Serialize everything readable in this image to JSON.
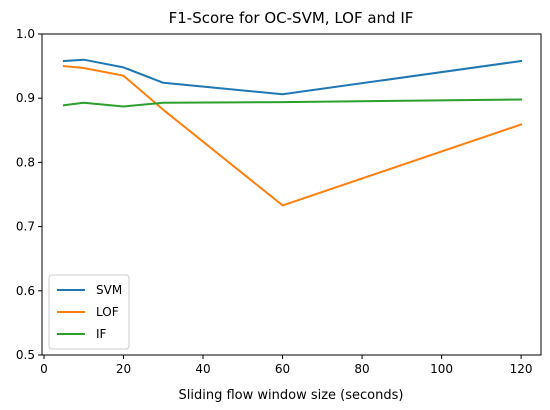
{
  "chart_data": {
    "type": "line",
    "title": "F1-Score for OC-SVM, LOF and IF",
    "xlabel": "Sliding flow window size (seconds)",
    "ylabel": "",
    "xlim": [
      -0.5,
      125
    ],
    "ylim": [
      0.5,
      1.0
    ],
    "xticks": [
      0,
      20,
      40,
      60,
      80,
      100,
      120
    ],
    "yticks": [
      0.5,
      0.6,
      0.7,
      0.8,
      0.9,
      1.0
    ],
    "xtick_labels": [
      "0",
      "20",
      "40",
      "60",
      "80",
      "100",
      "120"
    ],
    "ytick_labels": [
      "0.5",
      "0.6",
      "0.7",
      "0.8",
      "0.9",
      "1.0"
    ],
    "x": [
      5,
      10,
      20,
      30,
      60,
      120
    ],
    "series": [
      {
        "name": "SVM",
        "color": "#1f77b4",
        "values": [
          0.958,
          0.96,
          0.948,
          0.924,
          0.906,
          0.958
        ]
      },
      {
        "name": "LOF",
        "color": "#ff7f0e",
        "values": [
          0.95,
          0.947,
          0.935,
          0.882,
          0.733,
          0.859
        ]
      },
      {
        "name": "IF",
        "color": "#2ca02c",
        "values": [
          0.889,
          0.893,
          0.887,
          0.893,
          0.894,
          0.898
        ]
      }
    ],
    "grid": false,
    "legend_position": "lower-left"
  }
}
